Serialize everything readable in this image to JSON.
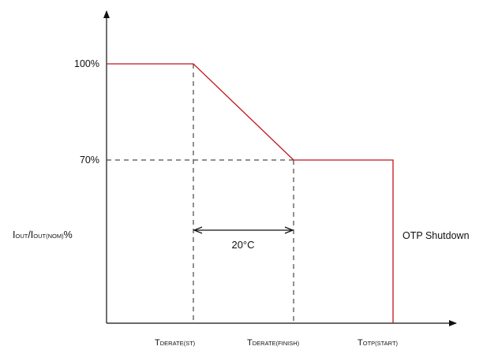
{
  "chart_data": {
    "type": "line",
    "title": "",
    "xlabel": "",
    "ylabel": {
      "parts": [
        {
          "text": "I",
          "sub": "OUT"
        },
        {
          "text": "/I",
          "sub": "OUT(NOM)"
        },
        {
          "text": "%",
          "sub": ""
        }
      ]
    },
    "y_ticks": [
      {
        "value": 100,
        "label": "100%"
      },
      {
        "value": 70,
        "label": "70%"
      }
    ],
    "x_ticks": [
      {
        "key": "st",
        "main": "T",
        "sub": "DERATE(ST)"
      },
      {
        "key": "finish",
        "main": "T",
        "sub": "DERATE(FINISH)"
      },
      {
        "key": "otp",
        "main": "T",
        "sub": "OTP(START)"
      }
    ],
    "series": [
      {
        "color": "#c0141c",
        "points": [
          {
            "x": "start",
            "y": 100
          },
          {
            "x": "st",
            "y": 100
          },
          {
            "x": "finish",
            "y": 70
          },
          {
            "x": "otp",
            "y": 70
          },
          {
            "x": "otp",
            "y": 0
          }
        ]
      }
    ],
    "annotations": {
      "delta_label": "20°C",
      "shutdown_label": "OTP Shutdown"
    },
    "grid": false,
    "colors": {
      "axis": "#111111",
      "guide": "#222222",
      "curve": "#c0141c"
    }
  }
}
